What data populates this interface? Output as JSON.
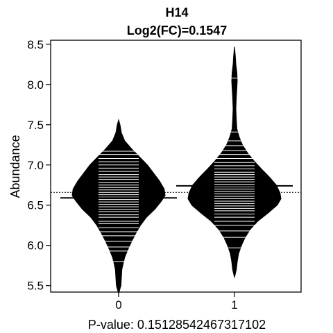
{
  "chart_data": {
    "type": "beanplot",
    "title": "H14",
    "subtitle": "Log2(FC)=0.1547",
    "xlabel": "P-value: 0.15128542467317102",
    "ylabel": "Abundance",
    "categories": [
      "0",
      "1"
    ],
    "ylim": [
      5.42,
      8.55
    ],
    "yticks": [
      5.5,
      6.0,
      6.5,
      7.0,
      7.5,
      8.0,
      8.5
    ],
    "ytick_labels": [
      "5.5",
      "6.0",
      "6.5",
      "7.0",
      "7.5",
      "8.0",
      "8.5"
    ],
    "overall_mean": 6.66,
    "series": [
      {
        "category": "0",
        "mean": 6.59,
        "density": [
          [
            5.4,
            0.0
          ],
          [
            5.5,
            0.05
          ],
          [
            5.6,
            0.06
          ],
          [
            5.7,
            0.07
          ],
          [
            5.78,
            0.1
          ],
          [
            5.85,
            0.13
          ],
          [
            5.95,
            0.2
          ],
          [
            6.05,
            0.28
          ],
          [
            6.15,
            0.37
          ],
          [
            6.25,
            0.47
          ],
          [
            6.35,
            0.6
          ],
          [
            6.45,
            0.78
          ],
          [
            6.55,
            0.92
          ],
          [
            6.62,
            1.0
          ],
          [
            6.7,
            0.98
          ],
          [
            6.8,
            0.88
          ],
          [
            6.9,
            0.75
          ],
          [
            7.0,
            0.62
          ],
          [
            7.1,
            0.45
          ],
          [
            7.2,
            0.28
          ],
          [
            7.3,
            0.13
          ],
          [
            7.4,
            0.06
          ],
          [
            7.5,
            0.03
          ],
          [
            7.56,
            0.0
          ]
        ],
        "points": [
          5.8,
          5.93,
          5.98,
          6.05,
          6.12,
          6.17,
          6.22,
          6.27,
          6.3,
          6.35,
          6.38,
          6.42,
          6.45,
          6.48,
          6.51,
          6.54,
          6.57,
          6.6,
          6.63,
          6.66,
          6.69,
          6.72,
          6.75,
          6.78,
          6.82,
          6.85,
          6.88,
          6.92,
          6.96,
          7.0,
          7.04,
          7.08,
          7.13,
          7.17
        ]
      },
      {
        "category": "1",
        "mean": 6.74,
        "density": [
          [
            5.6,
            0.0
          ],
          [
            5.7,
            0.04
          ],
          [
            5.8,
            0.06
          ],
          [
            5.9,
            0.09
          ],
          [
            6.0,
            0.15
          ],
          [
            6.1,
            0.23
          ],
          [
            6.2,
            0.34
          ],
          [
            6.3,
            0.5
          ],
          [
            6.4,
            0.72
          ],
          [
            6.5,
            0.92
          ],
          [
            6.58,
            1.0
          ],
          [
            6.65,
            0.98
          ],
          [
            6.75,
            0.9
          ],
          [
            6.85,
            0.75
          ],
          [
            6.95,
            0.58
          ],
          [
            7.05,
            0.42
          ],
          [
            7.15,
            0.28
          ],
          [
            7.25,
            0.17
          ],
          [
            7.35,
            0.1
          ],
          [
            7.45,
            0.05
          ],
          [
            7.55,
            0.04
          ],
          [
            7.7,
            0.03
          ],
          [
            7.85,
            0.04
          ],
          [
            7.95,
            0.05
          ],
          [
            8.05,
            0.06
          ],
          [
            8.15,
            0.05
          ],
          [
            8.25,
            0.03
          ],
          [
            8.35,
            0.02
          ],
          [
            8.47,
            0.0
          ]
        ],
        "points": [
          5.97,
          6.1,
          6.18,
          6.25,
          6.3,
          6.35,
          6.39,
          6.43,
          6.46,
          6.49,
          6.52,
          6.55,
          6.58,
          6.61,
          6.64,
          6.67,
          6.7,
          6.73,
          6.76,
          6.79,
          6.82,
          6.85,
          6.88,
          6.91,
          6.95,
          6.99,
          7.03,
          7.08,
          7.13,
          7.18,
          7.24,
          7.3,
          7.41,
          8.08
        ]
      }
    ]
  }
}
